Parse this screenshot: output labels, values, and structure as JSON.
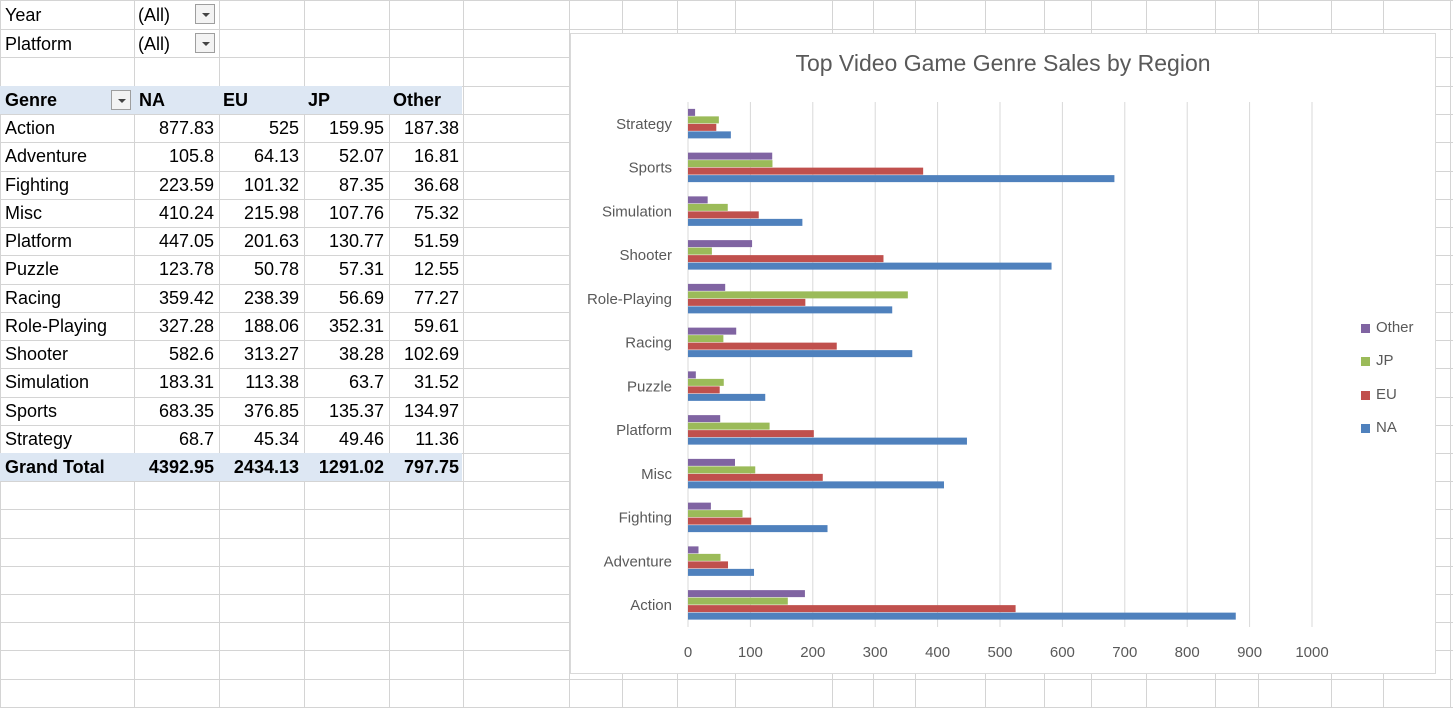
{
  "filters": [
    {
      "label": "Year",
      "value": "(All)"
    },
    {
      "label": "Platform",
      "value": "(All)"
    }
  ],
  "pivot": {
    "headers": [
      "Genre",
      "NA",
      "EU",
      "JP",
      "Other"
    ],
    "rows": [
      {
        "genre": "Action",
        "na": "877.83",
        "eu": "525",
        "jp": "159.95",
        "other": "187.38"
      },
      {
        "genre": "Adventure",
        "na": "105.8",
        "eu": "64.13",
        "jp": "52.07",
        "other": "16.81"
      },
      {
        "genre": "Fighting",
        "na": "223.59",
        "eu": "101.32",
        "jp": "87.35",
        "other": "36.68"
      },
      {
        "genre": "Misc",
        "na": "410.24",
        "eu": "215.98",
        "jp": "107.76",
        "other": "75.32"
      },
      {
        "genre": "Platform",
        "na": "447.05",
        "eu": "201.63",
        "jp": "130.77",
        "other": "51.59"
      },
      {
        "genre": "Puzzle",
        "na": "123.78",
        "eu": "50.78",
        "jp": "57.31",
        "other": "12.55"
      },
      {
        "genre": "Racing",
        "na": "359.42",
        "eu": "238.39",
        "jp": "56.69",
        "other": "77.27"
      },
      {
        "genre": "Role-Playing",
        "na": "327.28",
        "eu": "188.06",
        "jp": "352.31",
        "other": "59.61"
      },
      {
        "genre": "Shooter",
        "na": "582.6",
        "eu": "313.27",
        "jp": "38.28",
        "other": "102.69"
      },
      {
        "genre": "Simulation",
        "na": "183.31",
        "eu": "113.38",
        "jp": "63.7",
        "other": "31.52"
      },
      {
        "genre": "Sports",
        "na": "683.35",
        "eu": "376.85",
        "jp": "135.37",
        "other": "134.97"
      },
      {
        "genre": "Strategy",
        "na": "68.7",
        "eu": "45.34",
        "jp": "49.46",
        "other": "11.36"
      }
    ],
    "total": {
      "label": "Grand Total",
      "na": "4392.95",
      "eu": "2434.13",
      "jp": "1291.02",
      "other": "797.75"
    }
  },
  "chart_data": {
    "type": "bar",
    "orientation": "horizontal",
    "title": "Top Video Game Genre Sales by Region",
    "categories": [
      "Action",
      "Adventure",
      "Fighting",
      "Misc",
      "Platform",
      "Puzzle",
      "Racing",
      "Role-Playing",
      "Shooter",
      "Simulation",
      "Sports",
      "Strategy"
    ],
    "series": [
      {
        "name": "NA",
        "color": "#4f81bd",
        "values": [
          877.83,
          105.8,
          223.59,
          410.24,
          447.05,
          123.78,
          359.42,
          327.28,
          582.6,
          183.31,
          683.35,
          68.7
        ]
      },
      {
        "name": "EU",
        "color": "#c0504d",
        "values": [
          525,
          64.13,
          101.32,
          215.98,
          201.63,
          50.78,
          238.39,
          188.06,
          313.27,
          113.38,
          376.85,
          45.34
        ]
      },
      {
        "name": "JP",
        "color": "#9bbb59",
        "values": [
          159.95,
          52.07,
          87.35,
          107.76,
          130.77,
          57.31,
          56.69,
          352.31,
          38.28,
          63.7,
          135.37,
          49.46
        ]
      },
      {
        "name": "Other",
        "color": "#8064a2",
        "values": [
          187.38,
          16.81,
          36.68,
          75.32,
          51.59,
          12.55,
          77.27,
          59.61,
          102.69,
          31.52,
          134.97,
          11.36
        ]
      }
    ],
    "xlim": [
      0,
      1000
    ],
    "xticks": [
      0,
      100,
      200,
      300,
      400,
      500,
      600,
      700,
      800,
      900,
      1000
    ],
    "grid": true,
    "legend_position": "right",
    "legend_order": [
      "Other",
      "JP",
      "EU",
      "NA"
    ]
  },
  "colors": {
    "gridline": "#d4d4d4",
    "header_band": "#dde7f3",
    "chart_gridline": "#d9d9d9",
    "axis_text": "#595959"
  }
}
